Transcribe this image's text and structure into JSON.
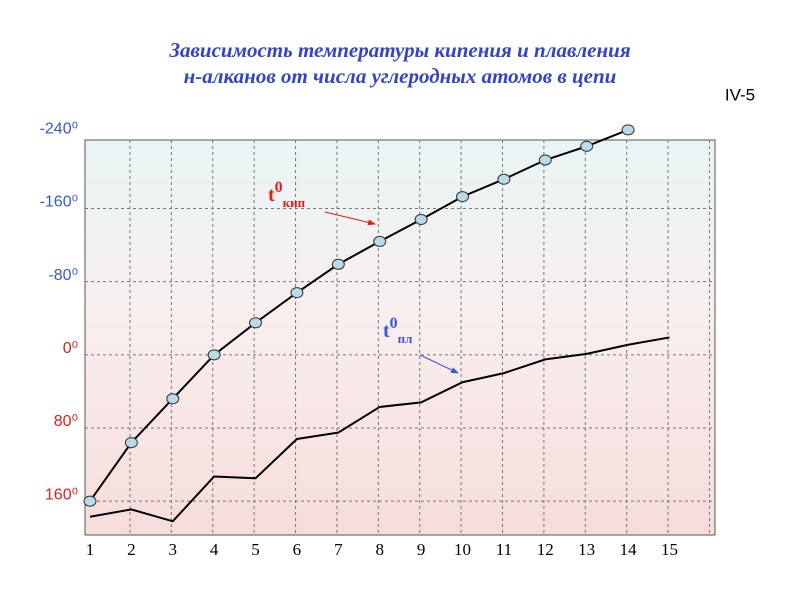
{
  "chart_data": {
    "type": "line",
    "title": [
      "Зависимость температуры кипения и плавления",
      "н-алканов от числа углеродных атомов в цепи"
    ],
    "slide_label": "IV-5",
    "x": [
      1,
      2,
      3,
      4,
      5,
      6,
      7,
      8,
      9,
      10,
      11,
      12,
      13,
      14,
      15
    ],
    "xlim": [
      0.88,
      16.1
    ],
    "xticks": [
      1,
      2,
      3,
      4,
      5,
      6,
      7,
      8,
      9,
      10,
      11,
      12,
      13,
      14,
      15
    ],
    "ylim": [
      -248,
      197
    ],
    "y_inverted": true,
    "yticks": [
      {
        "value": -240,
        "label": "-240⁰"
      },
      {
        "value": -160,
        "label": "-160⁰"
      },
      {
        "value": -80,
        "label": "-80⁰"
      },
      {
        "value": 0,
        "label": "0⁰"
      },
      {
        "value": 80,
        "label": "80⁰"
      },
      {
        "value": 160,
        "label": "160⁰"
      }
    ],
    "negative_tick_color": "#3a56d4",
    "positive_tick_color": "#e0201a",
    "grid": true,
    "series": [
      {
        "name": "кип",
        "color": "#000000",
        "markers": true,
        "marker_color": "#b9dbe9",
        "values": [
          160,
          96,
          48,
          0,
          -35,
          -68,
          -99,
          -124,
          -148,
          -173,
          -192,
          -213,
          -228,
          -246,
          null
        ]
      },
      {
        "name": "пл",
        "color": "#000000",
        "markers": false,
        "values": [
          177,
          169,
          182,
          133,
          135,
          92,
          85,
          57,
          52,
          30,
          20,
          5,
          -1,
          -11,
          -19
        ]
      }
    ],
    "annotations": [
      {
        "text": "t",
        "sup": "0",
        "sub": "кип",
        "color": "#e0201a"
      },
      {
        "text": "t",
        "sup": "0",
        "sub": "пл",
        "color": "#3a56d4"
      }
    ]
  }
}
